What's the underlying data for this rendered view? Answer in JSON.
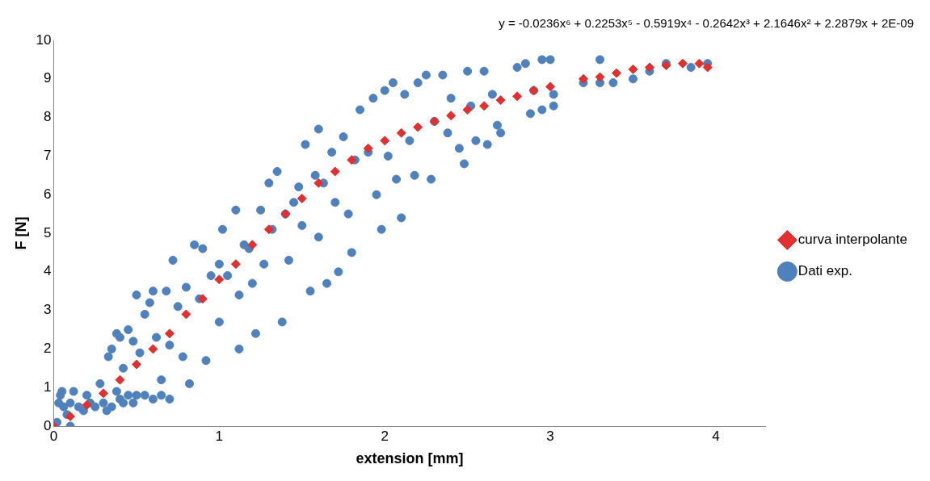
{
  "chart_data": {
    "type": "scatter",
    "xlabel": "extension [mm]",
    "ylabel": "F [N]",
    "xlim": [
      0,
      4.3
    ],
    "xticks": [
      0,
      1,
      2,
      3,
      4
    ],
    "ylim": [
      0,
      10
    ],
    "yticks": [
      0,
      1,
      2,
      3,
      4,
      5,
      6,
      7,
      8,
      9,
      10
    ],
    "legend": "right",
    "annotations": [
      "y = -0.0236x⁶ + 0.2253x⁵ - 0.5919x⁴ - 0.2642x³ + 2.1646x² + 2.2879x + 2E-09"
    ],
    "series": [
      {
        "name": "Dati exp.",
        "color": "#4f81bd",
        "marker": "circle",
        "x": [
          0.02,
          0.03,
          0.04,
          0.05,
          0.06,
          0.08,
          0.1,
          0.1,
          0.12,
          0.15,
          0.18,
          0.2,
          0.22,
          0.25,
          0.28,
          0.3,
          0.32,
          0.35,
          0.38,
          0.4,
          0.42,
          0.45,
          0.48,
          0.5,
          0.55,
          0.6,
          0.65,
          0.7,
          0.33,
          0.35,
          0.38,
          0.4,
          0.42,
          0.45,
          0.48,
          0.5,
          0.52,
          0.55,
          0.58,
          0.6,
          0.62,
          0.65,
          0.68,
          0.7,
          0.72,
          0.75,
          0.78,
          0.8,
          0.82,
          0.85,
          0.88,
          0.9,
          0.92,
          0.95,
          1.0,
          1.0,
          1.02,
          1.05,
          1.1,
          1.12,
          1.12,
          1.15,
          1.18,
          1.2,
          1.22,
          1.25,
          1.27,
          1.3,
          1.32,
          1.35,
          1.38,
          1.4,
          1.42,
          1.45,
          1.48,
          1.5,
          1.52,
          1.55,
          1.58,
          1.6,
          1.6,
          1.63,
          1.65,
          1.68,
          1.7,
          1.72,
          1.75,
          1.78,
          1.8,
          1.82,
          1.85,
          1.9,
          1.93,
          1.95,
          1.98,
          2.0,
          2.02,
          2.05,
          2.07,
          2.1,
          2.12,
          2.15,
          2.18,
          2.2,
          2.25,
          2.28,
          2.3,
          2.35,
          2.38,
          2.4,
          2.45,
          2.48,
          2.5,
          2.52,
          2.55,
          2.6,
          2.62,
          2.65,
          2.68,
          2.7,
          2.8,
          2.85,
          2.88,
          2.9,
          2.95,
          2.95,
          3.0,
          3.02,
          3.02,
          3.2,
          3.3,
          3.3,
          3.38,
          3.5,
          3.6,
          3.7,
          3.85,
          3.95
        ],
        "values": [
          0.1,
          0.6,
          0.8,
          0.9,
          0.5,
          0.3,
          0.0,
          0.6,
          0.9,
          0.5,
          0.4,
          0.8,
          0.6,
          0.5,
          1.1,
          0.6,
          0.4,
          0.5,
          0.9,
          0.7,
          0.6,
          0.8,
          0.6,
          0.8,
          0.8,
          0.7,
          0.8,
          0.7,
          1.8,
          2.0,
          2.4,
          2.3,
          1.5,
          2.5,
          2.2,
          3.4,
          1.9,
          2.9,
          3.2,
          3.5,
          2.3,
          1.2,
          3.5,
          2.1,
          4.3,
          3.1,
          1.8,
          3.6,
          1.1,
          4.7,
          3.3,
          4.6,
          1.7,
          3.9,
          4.2,
          2.7,
          5.1,
          3.9,
          5.6,
          3.4,
          2.0,
          4.7,
          4.6,
          3.7,
          2.4,
          5.6,
          4.2,
          6.3,
          5.1,
          6.6,
          2.7,
          5.5,
          4.3,
          5.8,
          6.2,
          5.2,
          7.3,
          3.5,
          6.5,
          7.7,
          4.9,
          6.3,
          3.7,
          7.1,
          5.8,
          4.0,
          7.5,
          5.5,
          4.5,
          6.9,
          8.2,
          7.1,
          8.5,
          6.0,
          5.1,
          8.7,
          7.0,
          8.9,
          6.4,
          5.4,
          8.6,
          7.4,
          6.5,
          8.9,
          9.1,
          6.4,
          7.9,
          9.1,
          7.6,
          8.5,
          7.2,
          6.8,
          9.2,
          8.3,
          7.4,
          9.2,
          7.3,
          8.6,
          7.8,
          7.6,
          9.3,
          9.4,
          8.1,
          8.7,
          9.5,
          8.2,
          9.5,
          8.6,
          8.3,
          8.9,
          9.5,
          8.9,
          8.9,
          9.0,
          9.2,
          9.4,
          9.3,
          9.4
        ]
      },
      {
        "name": "curva interpolante",
        "color": "#e03030",
        "marker": "diamond",
        "x": [
          0,
          0.1,
          0.2,
          0.3,
          0.4,
          0.5,
          0.6,
          0.7,
          0.8,
          0.9,
          1.0,
          1.1,
          1.2,
          1.3,
          1.4,
          1.5,
          1.6,
          1.7,
          1.8,
          1.9,
          2.0,
          2.1,
          2.2,
          2.3,
          2.4,
          2.5,
          2.6,
          2.7,
          2.8,
          2.9,
          3.0,
          3.2,
          3.3,
          3.4,
          3.5,
          3.6,
          3.7,
          3.8,
          3.9,
          3.95
        ],
        "values": [
          0.0,
          0.25,
          0.55,
          0.85,
          1.2,
          1.6,
          2.0,
          2.4,
          2.9,
          3.3,
          3.8,
          4.2,
          4.7,
          5.1,
          5.5,
          5.9,
          6.3,
          6.6,
          6.9,
          7.2,
          7.4,
          7.6,
          7.75,
          7.9,
          8.05,
          8.2,
          8.3,
          8.45,
          8.55,
          8.7,
          8.8,
          9.0,
          9.05,
          9.15,
          9.25,
          9.3,
          9.35,
          9.4,
          9.4,
          9.3
        ]
      }
    ]
  }
}
